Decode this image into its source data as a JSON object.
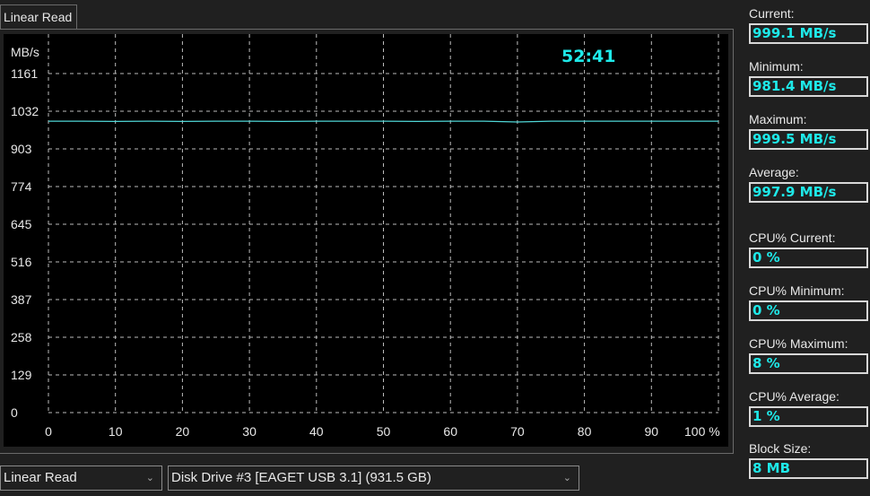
{
  "tab": {
    "label": "Linear Read"
  },
  "timer": "52:41",
  "stats": [
    {
      "label": "Current:",
      "value": "999.1 MB/s"
    },
    {
      "label": "Minimum:",
      "value": "981.4 MB/s"
    },
    {
      "label": "Maximum:",
      "value": "999.5 MB/s"
    },
    {
      "label": "Average:",
      "value": "997.9 MB/s"
    },
    {
      "label": "CPU% Current:",
      "value": "0 %"
    },
    {
      "label": "CPU% Minimum:",
      "value": "0 %"
    },
    {
      "label": "CPU% Maximum:",
      "value": "8 %"
    },
    {
      "label": "CPU% Average:",
      "value": "1 %"
    },
    {
      "label": "Block Size:",
      "value": "8 MB"
    }
  ],
  "controls": {
    "test_select": "Linear Read",
    "drive_select": "Disk Drive #3  [EAGET   USB 3.1]  (931.5 GB)"
  },
  "colors": {
    "line": "#4fd6d6",
    "value_text": "#1ee9e9",
    "grid": "#bdbdbd"
  },
  "chart_data": {
    "type": "line",
    "ylabel": "MB/s",
    "ylim": [
      0,
      1161
    ],
    "yticks": [
      "0",
      "129",
      "258",
      "387",
      "516",
      "645",
      "774",
      "903",
      "1032",
      "1161"
    ],
    "xlim": [
      0,
      100
    ],
    "xticks": [
      "0",
      "10",
      "20",
      "30",
      "40",
      "50",
      "60",
      "70",
      "80",
      "90",
      "100 %"
    ],
    "grid": true,
    "series": [
      {
        "x": [
          0,
          5,
          10,
          15,
          20,
          25,
          30,
          35,
          40,
          45,
          50,
          55,
          60,
          65,
          70,
          75,
          80,
          85,
          90,
          95,
          100
        ],
        "values": [
          998,
          998,
          997,
          998,
          997,
          998,
          998,
          997,
          998,
          998,
          998,
          997,
          998,
          998,
          995,
          998,
          998,
          998,
          998,
          998,
          998
        ]
      }
    ]
  }
}
